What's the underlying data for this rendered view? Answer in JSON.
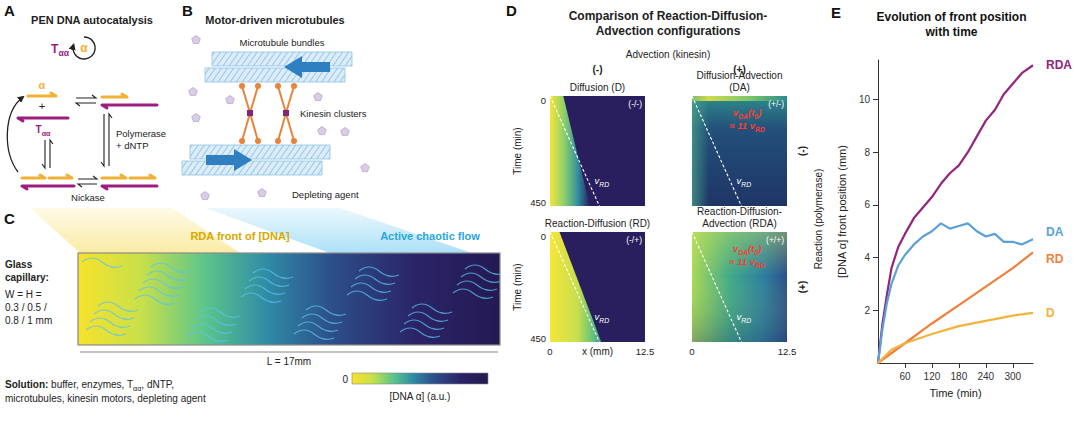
{
  "panels": {
    "A": {
      "letter": "A",
      "title": "PEN DNA autocatalysis",
      "template": [
        "T",
        {
          "sub": "αα"
        }
      ],
      "strand": "α",
      "plus": "+",
      "polymerase": [
        "Polymerase",
        "+ dNTP"
      ],
      "nickase": "Nickase"
    },
    "B": {
      "letter": "B",
      "title": "Motor-driven microtubules",
      "bundles": "Microtubule bundles",
      "kinesin": "Kinesin clusters",
      "depletant": "Depleting agent"
    },
    "C": {
      "letter": "C",
      "front": "RDA front of [DNA]",
      "flow": "Active chaotic flow",
      "capillary_title": [
        "Glass",
        "capillary:"
      ],
      "capillary_size": [
        "W = H =",
        "0.3 / 0.5 /",
        "0.8 / 1 mm"
      ],
      "length": "L = 17mm",
      "solution": {
        "lead": "Solution:",
        "lines": [
          [
            " buffer, enzymes, ",
            "T",
            {
              "sub": "αα"
            },
            ", dNTP,"
          ],
          [
            "microtubules, kinesin motors, depleting agent"
          ]
        ]
      },
      "colorbar": {
        "range": [
          0,
          1
        ],
        "ticks": [
          0
        ],
        "label": "[DNA α] (a.u.)"
      }
    },
    "D": {
      "letter": "D",
      "title": "Comparison of Reaction-Diffusion-Advection configurations",
      "columns_title": "Advection (kinesin)",
      "columns": [
        "(-)",
        "(+)"
      ],
      "rows_title": "Reaction (polymerase)",
      "rows": [
        "(-)",
        "(+)"
      ],
      "x_label": "x (mm)",
      "xlim": [
        0,
        12.5
      ],
      "xticks": [
        0,
        12.5
      ],
      "t_label": "Time (min)",
      "tlim": [
        0,
        450
      ],
      "tticks": [
        0,
        450
      ],
      "v_rd": [
        "v",
        {
          "sub": "RD"
        }
      ],
      "v_da": [
        "v",
        {
          "sub": "DA"
        },
        "(t",
        {
          "sub": "0"
        },
        ")"
      ],
      "ratio": [
        "≈ 11 ",
        "v",
        {
          "sub": "RD"
        }
      ],
      "rd_line": {
        "x": [
          0,
          6.5
        ],
        "t": [
          0,
          450
        ]
      },
      "kymographs": [
        {
          "title": "Diffusion (D)",
          "tag": "(-/-)"
        },
        {
          "title": "Diffusion-Advection (DA)",
          "tag": "(+/-)"
        },
        {
          "title": "Reaction-Diffusion (RD)",
          "tag": "(-/+)"
        },
        {
          "title": "Reaction-Diffusion-Advection (RDA)",
          "tag": "(+/+)"
        }
      ]
    }
  },
  "chart_data": {
    "type": "line",
    "letter": "E",
    "title": "Evolution of front position with time",
    "x_label": "Time (min)",
    "y_label": "[DNA α] front position (mm)",
    "xlim": [
      0,
      345
    ],
    "xticks": [
      60,
      120,
      180,
      240,
      300
    ],
    "ylim": [
      0,
      11.5
    ],
    "yticks": [
      2,
      4,
      6,
      8,
      10
    ],
    "grid": false,
    "series": [
      {
        "name": "RDA",
        "color": "#93257b",
        "x": [
          0,
          10,
          20,
          30,
          45,
          60,
          80,
          100,
          120,
          140,
          160,
          180,
          200,
          220,
          240,
          260,
          280,
          300,
          320,
          345
        ],
        "values": [
          0,
          1.5,
          2.6,
          3.6,
          4.4,
          4.9,
          5.5,
          5.9,
          6.3,
          6.8,
          7.2,
          7.5,
          8.0,
          8.6,
          9.2,
          9.6,
          10.2,
          10.6,
          11.0,
          11.3
        ]
      },
      {
        "name": "DA",
        "color": "#5aa0dc",
        "x": [
          0,
          10,
          20,
          30,
          45,
          60,
          80,
          100,
          120,
          140,
          160,
          180,
          200,
          220,
          240,
          260,
          280,
          300,
          320,
          345
        ],
        "values": [
          0,
          1.3,
          2.3,
          3.0,
          3.7,
          4.1,
          4.5,
          4.8,
          5.0,
          5.3,
          5.1,
          5.2,
          5.3,
          5.0,
          4.8,
          4.9,
          4.6,
          4.6,
          4.5,
          4.7
        ]
      },
      {
        "name": "RD",
        "color": "#f07f3c",
        "x": [
          0,
          60,
          120,
          180,
          240,
          300,
          345
        ],
        "values": [
          0,
          0.75,
          1.5,
          2.2,
          2.9,
          3.6,
          4.2
        ]
      },
      {
        "name": "D",
        "color": "#f2b33d",
        "x": [
          0,
          30,
          60,
          120,
          180,
          240,
          300,
          345
        ],
        "values": [
          0,
          0.5,
          0.75,
          1.1,
          1.4,
          1.6,
          1.8,
          1.9
        ]
      }
    ]
  }
}
